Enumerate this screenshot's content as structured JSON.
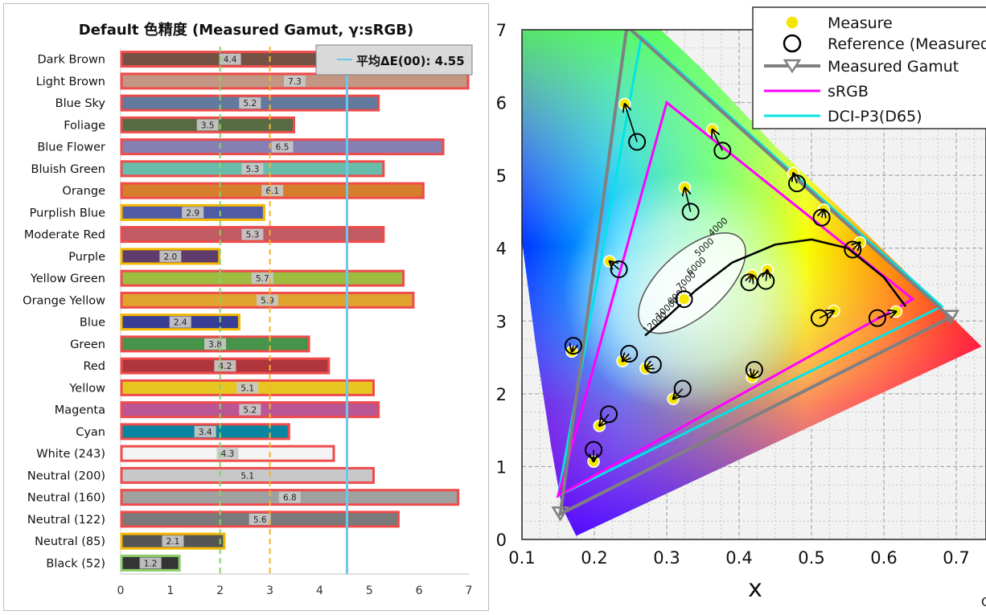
{
  "chart_data": [
    {
      "type": "bar",
      "title": "Default 色精度 (Measured Gamut, γ:sRGB)",
      "xlim": [
        0,
        7
      ],
      "xticks": [
        "0",
        "1",
        "2",
        "3",
        "4",
        "5",
        "6",
        "7"
      ],
      "reference_lines": [
        {
          "value": 2,
          "style": "dashed",
          "color": "#8ccf6a"
        },
        {
          "value": 3,
          "style": "dashed",
          "color": "#f2b233"
        },
        {
          "value": 4.55,
          "style": "solid",
          "color": "#6ec6ea"
        }
      ],
      "average_label": "平均ΔE(00): 4.55",
      "categories": [
        {
          "label": "Dark Brown",
          "value": 4.4,
          "value_label": "4.4",
          "fill": "#735244",
          "border": "#ef4b4b"
        },
        {
          "label": "Light Brown",
          "value": 7.3,
          "value_label": "7.3",
          "fill": "#c29682",
          "border": "#ef4b4b"
        },
        {
          "label": "Blue Sky",
          "value": 5.2,
          "value_label": "5.2",
          "fill": "#627a9d",
          "border": "#ef4b4b"
        },
        {
          "label": "Foliage",
          "value": 3.5,
          "value_label": "3.5",
          "fill": "#576c43",
          "border": "#ef4b4b"
        },
        {
          "label": "Blue Flower",
          "value": 6.5,
          "value_label": "6.5",
          "fill": "#8580b1",
          "border": "#ef4b4b"
        },
        {
          "label": "Bluish Green",
          "value": 5.3,
          "value_label": "5.3",
          "fill": "#67bdaa",
          "border": "#ef4b4b"
        },
        {
          "label": "Orange",
          "value": 6.1,
          "value_label": "6.1",
          "fill": "#d67e2c",
          "border": "#ef4b4b"
        },
        {
          "label": "Purplish Blue",
          "value": 2.9,
          "value_label": "2.9",
          "fill": "#505ba6",
          "border": "#f5b800"
        },
        {
          "label": "Moderate Red",
          "value": 5.3,
          "value_label": "5.3",
          "fill": "#c15a63",
          "border": "#ef4b4b"
        },
        {
          "label": "Purple",
          "value": 2.0,
          "value_label": "2.0",
          "fill": "#5e3c6c",
          "border": "#f5b800"
        },
        {
          "label": "Yellow Green",
          "value": 5.7,
          "value_label": "5.7",
          "fill": "#9dbc40",
          "border": "#ef4b4b"
        },
        {
          "label": "Orange Yellow",
          "value": 5.9,
          "value_label": "5.9",
          "fill": "#e0a32e",
          "border": "#ef4b4b"
        },
        {
          "label": "Blue",
          "value": 2.4,
          "value_label": "2.4",
          "fill": "#383d96",
          "border": "#f5b800"
        },
        {
          "label": "Green",
          "value": 3.8,
          "value_label": "3.8",
          "fill": "#469449",
          "border": "#ef4b4b"
        },
        {
          "label": "Red",
          "value": 4.2,
          "value_label": "4.2",
          "fill": "#af363c",
          "border": "#ef4b4b"
        },
        {
          "label": "Yellow",
          "value": 5.1,
          "value_label": "5.1",
          "fill": "#e7c71f",
          "border": "#ef4b4b"
        },
        {
          "label": "Magenta",
          "value": 5.2,
          "value_label": "5.2",
          "fill": "#bb5695",
          "border": "#ef4b4b"
        },
        {
          "label": "Cyan",
          "value": 3.4,
          "value_label": "3.4",
          "fill": "#0885a1",
          "border": "#ef4b4b"
        },
        {
          "label": "White (243)",
          "value": 4.3,
          "value_label": "4.3",
          "fill": "#f3f3f3",
          "border": "#ef4b4b"
        },
        {
          "label": "Neutral (200)",
          "value": 5.1,
          "value_label": "5.1",
          "fill": "#c8c8c8",
          "border": "#ef4b4b"
        },
        {
          "label": "Neutral (160)",
          "value": 6.8,
          "value_label": "6.8",
          "fill": "#a0a0a0",
          "border": "#ef4b4b"
        },
        {
          "label": "Neutral (122)",
          "value": 5.6,
          "value_label": "5.6",
          "fill": "#7a7a7a",
          "border": "#ef4b4b"
        },
        {
          "label": "Neutral (85)",
          "value": 2.1,
          "value_label": "2.1",
          "fill": "#555555",
          "border": "#f5b800"
        },
        {
          "label": "Black (52)",
          "value": 1.2,
          "value_label": "1.2",
          "fill": "#343434",
          "border": "#8ccf6a"
        }
      ]
    },
    {
      "type": "scatter",
      "subtype": "cie-1931-chromaticity",
      "xlabel": "x",
      "xlim": [
        0.1,
        0.75
      ],
      "ylim": [
        0,
        7
      ],
      "xticks": [
        "0.1",
        "0.2",
        "0.3",
        "0.4",
        "0.5",
        "0.6",
        "0.7"
      ],
      "yticks": [
        "0",
        "1",
        "2",
        "3",
        "4",
        "5",
        "6",
        "7"
      ],
      "corner_text": "C",
      "legend": {
        "position": "top-right",
        "entries": [
          {
            "label": "Measure",
            "color": "#f5e600"
          },
          {
            "label": "Reference (Measured",
            "color": "#000000"
          },
          {
            "label": "Measured Gamut",
            "color": "#808080"
          },
          {
            "label": "sRGB",
            "color": "#ff00ff"
          },
          {
            "label": "DCI-P3(D65)",
            "color": "#00e5e5"
          }
        ]
      },
      "gamuts": {
        "measured": [
          [
            0.692,
            3.05
          ],
          [
            0.245,
            7.05
          ],
          [
            0.153,
            0.35
          ]
        ],
        "srgb": [
          [
            0.64,
            3.3
          ],
          [
            0.3,
            6.0
          ],
          [
            0.15,
            0.6
          ]
        ],
        "dci_p3": [
          [
            0.68,
            3.2
          ],
          [
            0.265,
            6.9
          ],
          [
            0.15,
            0.6
          ]
        ]
      },
      "planckian_labels": [
        "4000",
        "5000",
        "6000",
        "7000",
        "8000",
        "10000",
        "12000"
      ],
      "points": [
        {
          "measure": [
            0.242,
            5.98
          ],
          "reference": [
            0.259,
            5.46
          ]
        },
        {
          "measure": [
            0.363,
            5.63
          ],
          "reference": [
            0.377,
            5.34
          ]
        },
        {
          "measure": [
            0.325,
            4.83
          ],
          "reference": [
            0.333,
            4.5
          ]
        },
        {
          "measure": [
            0.475,
            5.03
          ],
          "reference": [
            0.48,
            4.89
          ]
        },
        {
          "measure": [
            0.517,
            4.53
          ],
          "reference": [
            0.514,
            4.42
          ]
        },
        {
          "measure": [
            0.567,
            4.08
          ],
          "reference": [
            0.557,
            3.98
          ]
        },
        {
          "measure": [
            0.221,
            3.82
          ],
          "reference": [
            0.234,
            3.71
          ]
        },
        {
          "measure": [
            0.439,
            3.7
          ],
          "reference": [
            0.437,
            3.55
          ]
        },
        {
          "measure": [
            0.418,
            3.63
          ],
          "reference": [
            0.414,
            3.53
          ]
        },
        {
          "measure": [
            0.324,
            3.3
          ],
          "reference": [
            0.324,
            3.3
          ]
        },
        {
          "measure": [
            0.531,
            3.14
          ],
          "reference": [
            0.511,
            3.04
          ]
        },
        {
          "measure": [
            0.617,
            3.13
          ],
          "reference": [
            0.591,
            3.04
          ]
        },
        {
          "measure": [
            0.169,
            2.58
          ],
          "reference": [
            0.171,
            2.66
          ]
        },
        {
          "measure": [
            0.239,
            2.45
          ],
          "reference": [
            0.248,
            2.55
          ]
        },
        {
          "measure": [
            0.271,
            2.35
          ],
          "reference": [
            0.281,
            2.4
          ]
        },
        {
          "measure": [
            0.418,
            2.23
          ],
          "reference": [
            0.421,
            2.33
          ]
        },
        {
          "measure": [
            0.309,
            1.93
          ],
          "reference": [
            0.322,
            2.07
          ]
        },
        {
          "measure": [
            0.207,
            1.56
          ],
          "reference": [
            0.22,
            1.72
          ]
        },
        {
          "measure": [
            0.199,
            1.07
          ],
          "reference": [
            0.199,
            1.23
          ]
        }
      ]
    }
  ]
}
